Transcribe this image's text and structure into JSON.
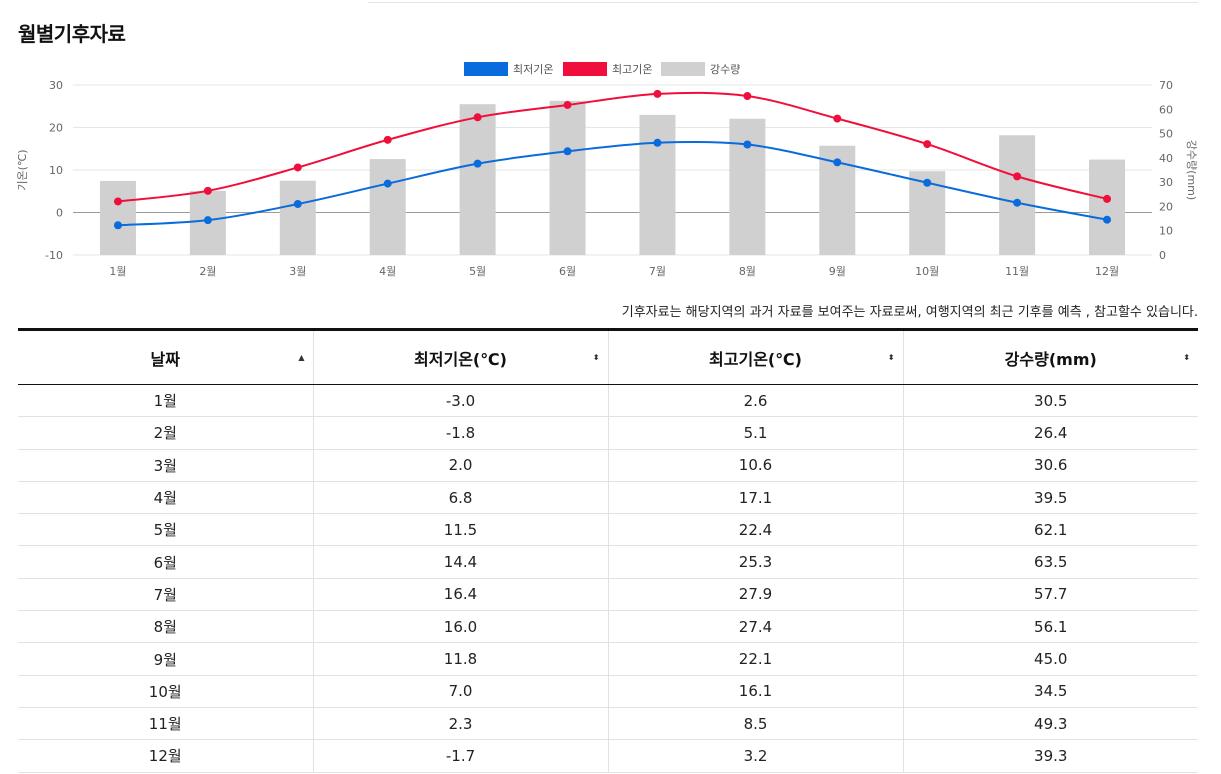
{
  "page": {
    "title": "월별기후자료"
  },
  "legend": [
    {
      "label": "최저기온",
      "color": "#0a6bdc"
    },
    {
      "label": "최고기온",
      "color": "#f00f3c"
    },
    {
      "label": "강수량",
      "color": "#d0d0d0"
    }
  ],
  "chart_data": {
    "type": "bar",
    "categories": [
      "1월",
      "2월",
      "3월",
      "4월",
      "5월",
      "6월",
      "7월",
      "8월",
      "9월",
      "10월",
      "11월",
      "12월"
    ],
    "series": [
      {
        "name": "최저기온",
        "type": "line",
        "axis": "left",
        "color": "#0a6bdc",
        "values": [
          -3.0,
          -1.8,
          2.0,
          6.8,
          11.5,
          14.4,
          16.4,
          16.0,
          11.8,
          7.0,
          2.3,
          -1.7
        ]
      },
      {
        "name": "최고기온",
        "type": "line",
        "axis": "left",
        "color": "#f00f3c",
        "values": [
          2.6,
          5.1,
          10.6,
          17.1,
          22.4,
          25.3,
          27.9,
          27.4,
          22.1,
          16.1,
          8.5,
          3.2
        ]
      },
      {
        "name": "강수량",
        "type": "bar",
        "axis": "right",
        "color": "#d0d0d0",
        "values": [
          30.5,
          26.4,
          30.6,
          39.5,
          62.1,
          63.5,
          57.7,
          56.1,
          45.0,
          34.5,
          49.3,
          39.3
        ]
      }
    ],
    "ylabel": "기온(℃)",
    "y2label": "강수량(mm)",
    "ylim": [
      -10,
      30
    ],
    "y2lim": [
      0,
      70
    ],
    "yticks": [
      "-10",
      "0",
      "10",
      "20",
      "30"
    ],
    "y2ticks": [
      "0",
      "10",
      "20",
      "30",
      "40",
      "50",
      "60",
      "70"
    ],
    "grid": true,
    "legend_position": "top-center"
  },
  "note": "기후자료는 해당지역의 과거 자료를 보여주는 자료로써, 여행지역의 최근 기후를 예측 , 참고할수 있습니다.",
  "table": {
    "headers": [
      "날짜",
      "최저기온(℃)",
      "최고기온(℃)",
      "강수량(mm)"
    ],
    "sort_icons": [
      "▲",
      "⬍",
      "⬍",
      "⬍"
    ],
    "rows": [
      [
        "1월",
        "-3.0",
        "2.6",
        "30.5"
      ],
      [
        "2월",
        "-1.8",
        "5.1",
        "26.4"
      ],
      [
        "3월",
        "2.0",
        "10.6",
        "30.6"
      ],
      [
        "4월",
        "6.8",
        "17.1",
        "39.5"
      ],
      [
        "5월",
        "11.5",
        "22.4",
        "62.1"
      ],
      [
        "6월",
        "14.4",
        "25.3",
        "63.5"
      ],
      [
        "7월",
        "16.4",
        "27.9",
        "57.7"
      ],
      [
        "8월",
        "16.0",
        "27.4",
        "56.1"
      ],
      [
        "9월",
        "11.8",
        "22.1",
        "45.0"
      ],
      [
        "10월",
        "7.0",
        "16.1",
        "34.5"
      ],
      [
        "11월",
        "2.3",
        "8.5",
        "49.3"
      ],
      [
        "12월",
        "-1.7",
        "3.2",
        "39.3"
      ]
    ]
  }
}
